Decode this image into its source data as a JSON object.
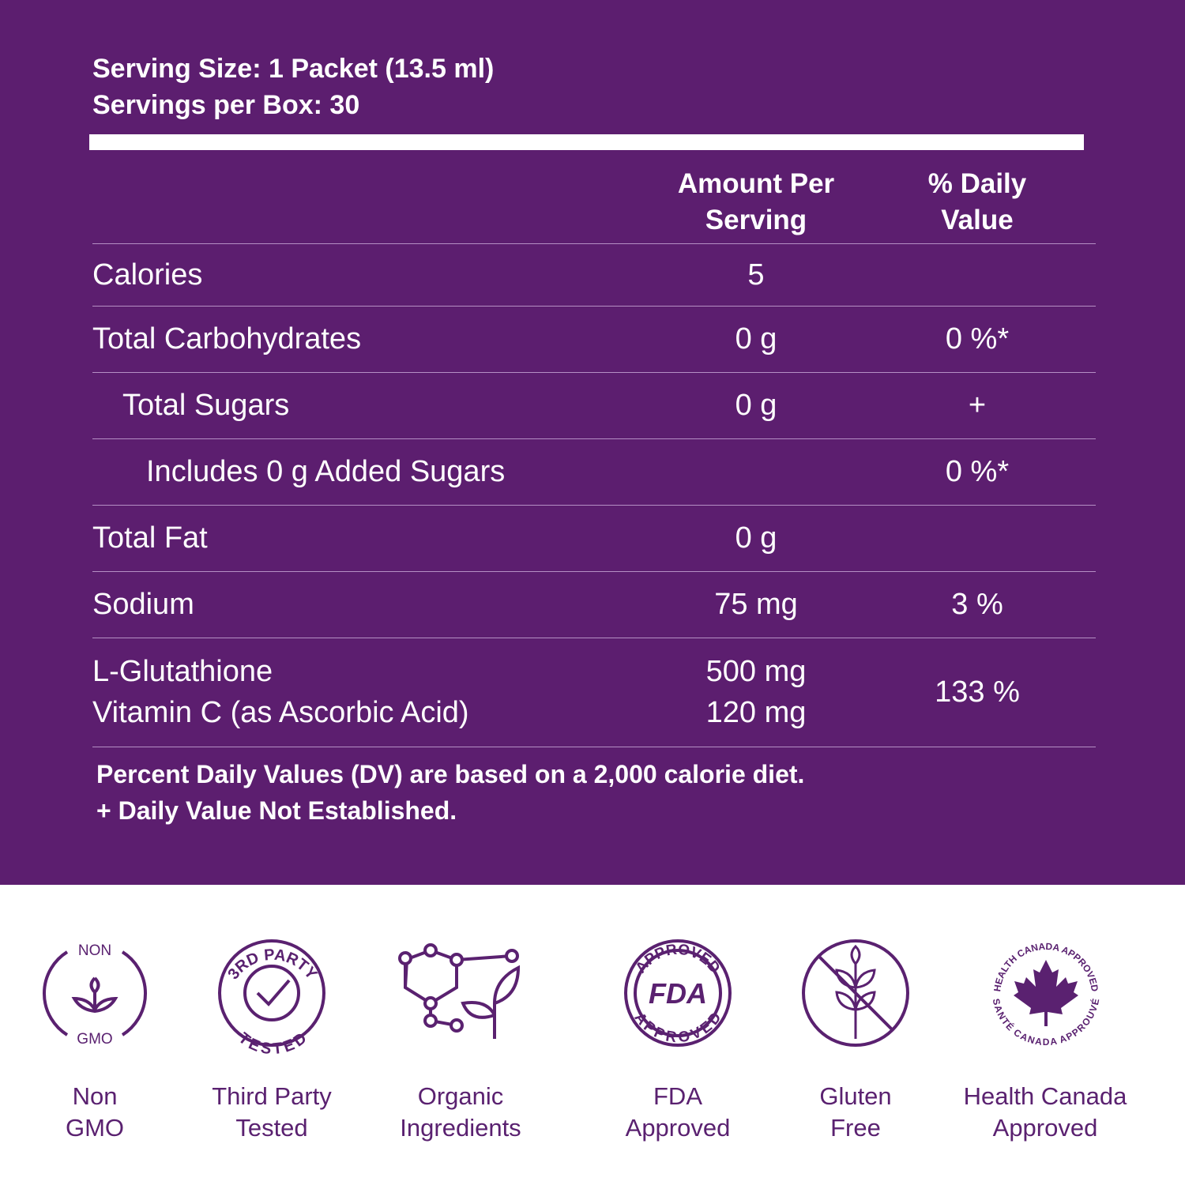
{
  "header": {
    "serving_size": "Serving Size: 1 Packet (13.5 ml)",
    "servings": "Servings per Box: 30"
  },
  "table": {
    "columns": [
      "Amount Per Serving",
      "% Daily Value"
    ],
    "rows": [
      {
        "name": [
          "Calories"
        ],
        "amount": [
          "5"
        ]
      },
      {
        "name": [
          "Total Carbohydrates"
        ],
        "amount": [
          "0 g"
        ],
        "dv": "0 %*"
      },
      {
        "name": [
          "Total Sugars"
        ],
        "amount": [
          "0 g"
        ],
        "dv": "+"
      },
      {
        "name": [
          "Includes 0 g Added Sugars"
        ],
        "dv": "0 %*"
      },
      {
        "name": [
          "Total Fat"
        ],
        "amount": [
          "0 g"
        ]
      },
      {
        "name": [
          "Sodium"
        ],
        "amount": [
          "75 mg"
        ],
        "dv": "3 %"
      },
      {
        "name": [
          "L-Glutathione",
          "Vitamin C (as Ascorbic Acid)"
        ],
        "amount": [
          "500 mg",
          "120 mg"
        ],
        "dv": "133 %"
      }
    ]
  },
  "footnotes": [
    "Percent Daily Values (DV) are based on a 2,000 calorie diet.",
    "+ Daily Value Not Established."
  ],
  "badges": [
    {
      "icon_text": [
        "NON",
        "GMO"
      ],
      "label": [
        "Non",
        "GMO"
      ]
    },
    {
      "icon_text": [
        "3RD PARTY",
        "TESTED"
      ],
      "label": [
        "Third Party",
        "Tested"
      ]
    },
    {
      "label": [
        "Organic",
        "Ingredients"
      ]
    },
    {
      "icon_text": [
        "APPROVED",
        "FDA",
        "APPROVED"
      ],
      "label": [
        "FDA",
        "Approved"
      ]
    },
    {
      "label": [
        "Gluten",
        "Free"
      ]
    },
    {
      "icon_text": [
        "HEALTH CANADA APPROVED",
        "SANTÉ CANADA APPROUVÉ"
      ],
      "label": [
        "Health Canada",
        "Approved"
      ]
    }
  ]
}
